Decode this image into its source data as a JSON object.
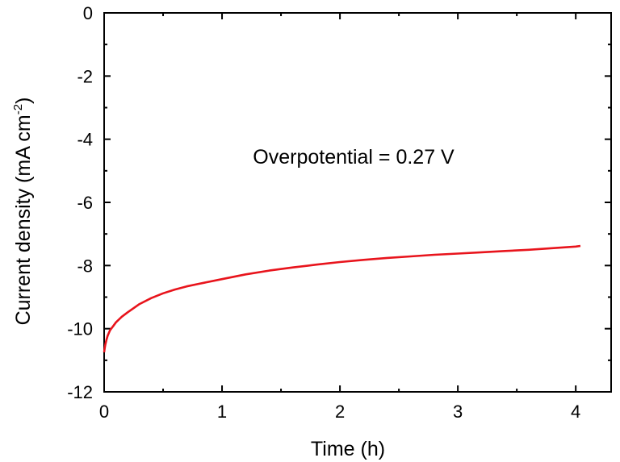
{
  "chart_data": {
    "type": "line",
    "xlabel": "Time (h)",
    "ylabel_main": "Current density (mA cm",
    "ylabel_sup": "-2",
    "ylabel_close": ")",
    "annotation": "Overpotential = 0.27 V",
    "xlim": [
      0,
      4.3
    ],
    "ylim": [
      -12,
      0
    ],
    "x_ticks": [
      0,
      1,
      2,
      3,
      4
    ],
    "x_tick_labels": [
      "0",
      "1",
      "2",
      "3",
      "4"
    ],
    "y_ticks": [
      0,
      -2,
      -4,
      -6,
      -8,
      -10,
      -12
    ],
    "y_tick_labels": [
      "0",
      "-2",
      "-4",
      "-6",
      "-8",
      "-10",
      "-12"
    ],
    "grid": false,
    "series": [
      {
        "color": "#e8141c",
        "x": [
          0,
          0.005,
          0.01,
          0.02,
          0.03,
          0.05,
          0.08,
          0.1,
          0.15,
          0.2,
          0.3,
          0.4,
          0.5,
          0.6,
          0.7,
          0.8,
          1.0,
          1.2,
          1.4,
          1.6,
          1.8,
          2.0,
          2.2,
          2.4,
          2.6,
          2.8,
          3.0,
          3.2,
          3.4,
          3.6,
          3.8,
          4.0,
          4.04
        ],
        "y": [
          -10.75,
          -10.62,
          -10.5,
          -10.35,
          -10.22,
          -10.05,
          -9.9,
          -9.8,
          -9.62,
          -9.48,
          -9.22,
          -9.03,
          -8.88,
          -8.76,
          -8.66,
          -8.58,
          -8.43,
          -8.28,
          -8.16,
          -8.06,
          -7.97,
          -7.89,
          -7.82,
          -7.76,
          -7.71,
          -7.66,
          -7.62,
          -7.58,
          -7.54,
          -7.5,
          -7.45,
          -7.4,
          -7.38
        ]
      }
    ]
  }
}
